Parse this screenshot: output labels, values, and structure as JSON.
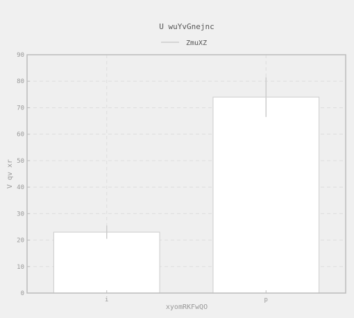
{
  "chart_data": {
    "type": "bar",
    "title": "U wuYvGnejnc",
    "xlabel": "xyomRKFwQO",
    "ylabel": "V qv xr",
    "categories": [
      "i",
      "p"
    ],
    "series": [
      {
        "name": "ZmuXZ",
        "values": [
          23,
          74
        ],
        "error": [
          2.5,
          7.5
        ]
      }
    ],
    "ylim": [
      0,
      90
    ],
    "yticks": [
      0,
      10,
      20,
      30,
      40,
      50,
      60,
      70,
      80,
      90
    ],
    "grid": true,
    "legend": "top-center"
  },
  "colors": {
    "background": "#f0f0f0",
    "plot_background": "#efefef",
    "bar_fill": "#ffffff",
    "bar_edge": "#cccccc",
    "grid": "#dddddd",
    "axes": "#bbbbbb",
    "errorbar": "#cccccc"
  }
}
